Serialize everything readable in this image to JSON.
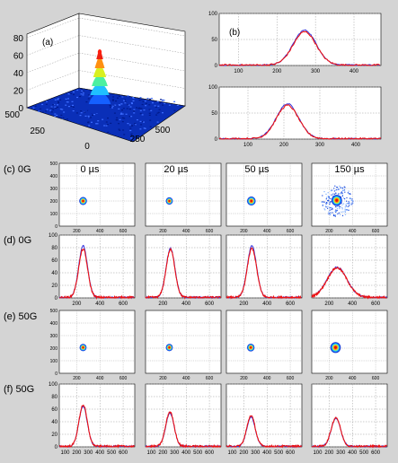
{
  "panels": {
    "a": "(a)",
    "b": "(b)",
    "c": "(c) 0G",
    "d": "(d) 0G",
    "e": "(e) 50G",
    "f": "(f) 50G"
  },
  "times": [
    "0 µs",
    "20 µs",
    "50 µs",
    "150 µs"
  ],
  "colors": {
    "blue": "#3333dd",
    "red": "#ee1111",
    "bg": "#d4d4d4",
    "plot_bg": "#ffffff",
    "grid": "#9a9a9a"
  },
  "chart_data": [
    {
      "id": "a",
      "type": "surface",
      "z_ticks": [
        "0",
        "20",
        "40",
        "60",
        "80"
      ],
      "x_ticks": [
        "0",
        "250",
        "500"
      ],
      "y_ticks": [
        "500",
        "250",
        "0"
      ],
      "peak": {
        "x": 250,
        "y": 250,
        "z": 62
      }
    },
    {
      "id": "b1",
      "type": "line",
      "xlim": [
        50,
        470
      ],
      "ylim": [
        0,
        100
      ],
      "x_ticks": [
        "100",
        "200",
        "300",
        "400"
      ],
      "y_ticks": [
        "0",
        "50",
        "100"
      ],
      "series": [
        {
          "color": "blue",
          "center": 272,
          "width": 30,
          "peak": 67
        },
        {
          "color": "red",
          "center": 272,
          "width": 30,
          "peak": 64
        }
      ]
    },
    {
      "id": "b2",
      "type": "line",
      "xlim": [
        20,
        470
      ],
      "ylim": [
        0,
        100
      ],
      "x_ticks": [
        "100",
        "200",
        "300",
        "400"
      ],
      "y_ticks": [
        "0",
        "50",
        "100"
      ],
      "series": [
        {
          "color": "blue",
          "center": 210,
          "width": 31,
          "peak": 67
        },
        {
          "color": "red",
          "center": 210,
          "width": 31,
          "peak": 64
        }
      ]
    },
    {
      "id": "c",
      "type": "heatmap",
      "y_ticks": [
        "0",
        "100",
        "200",
        "300",
        "400",
        "500"
      ],
      "x_ticks": [
        "200",
        "400",
        "600"
      ],
      "spots": [
        {
          "x": 255,
          "y": 200,
          "r": 33
        },
        {
          "x": 255,
          "y": 200,
          "r": 30
        },
        {
          "x": 265,
          "y": 200,
          "r": 37
        },
        {
          "x": 265,
          "y": 205,
          "r": 130
        }
      ]
    },
    {
      "id": "d",
      "type": "line",
      "ylim": [
        0,
        100
      ],
      "y_ticks": [
        "0",
        "20",
        "40",
        "60",
        "80",
        "100"
      ],
      "x_ticks": [
        "200",
        "400",
        "600"
      ],
      "series": [
        {
          "center": 255,
          "width": 38,
          "blue": 82,
          "red": 77
        },
        {
          "center": 265,
          "width": 38,
          "blue": 78,
          "red": 76
        },
        {
          "center": 270,
          "width": 40,
          "blue": 82,
          "red": 78
        },
        {
          "center": 268,
          "width": 85,
          "blue": 48,
          "red": 47
        }
      ]
    },
    {
      "id": "e",
      "type": "heatmap",
      "y_ticks": [
        "0",
        "100",
        "200",
        "300",
        "400",
        "500"
      ],
      "x_ticks": [
        "200",
        "400",
        "600"
      ],
      "spots": [
        {
          "x": 255,
          "y": 205,
          "r": 30
        },
        {
          "x": 255,
          "y": 205,
          "r": 30
        },
        {
          "x": 260,
          "y": 205,
          "r": 32
        },
        {
          "x": 255,
          "y": 205,
          "r": 45
        }
      ]
    },
    {
      "id": "f",
      "type": "line",
      "ylim": [
        0,
        100
      ],
      "y_ticks": [
        "0",
        "20",
        "40",
        "60",
        "80",
        "100"
      ],
      "x_ticks": [
        "100",
        "200",
        "300",
        "400",
        "500",
        "600"
      ],
      "series": [
        {
          "center": 255,
          "width": 36,
          "blue": 64,
          "red": 66
        },
        {
          "center": 260,
          "width": 36,
          "blue": 53,
          "red": 55
        },
        {
          "center": 262,
          "width": 36,
          "blue": 47,
          "red": 49
        },
        {
          "center": 258,
          "width": 40,
          "blue": 45,
          "red": 46
        }
      ]
    }
  ]
}
